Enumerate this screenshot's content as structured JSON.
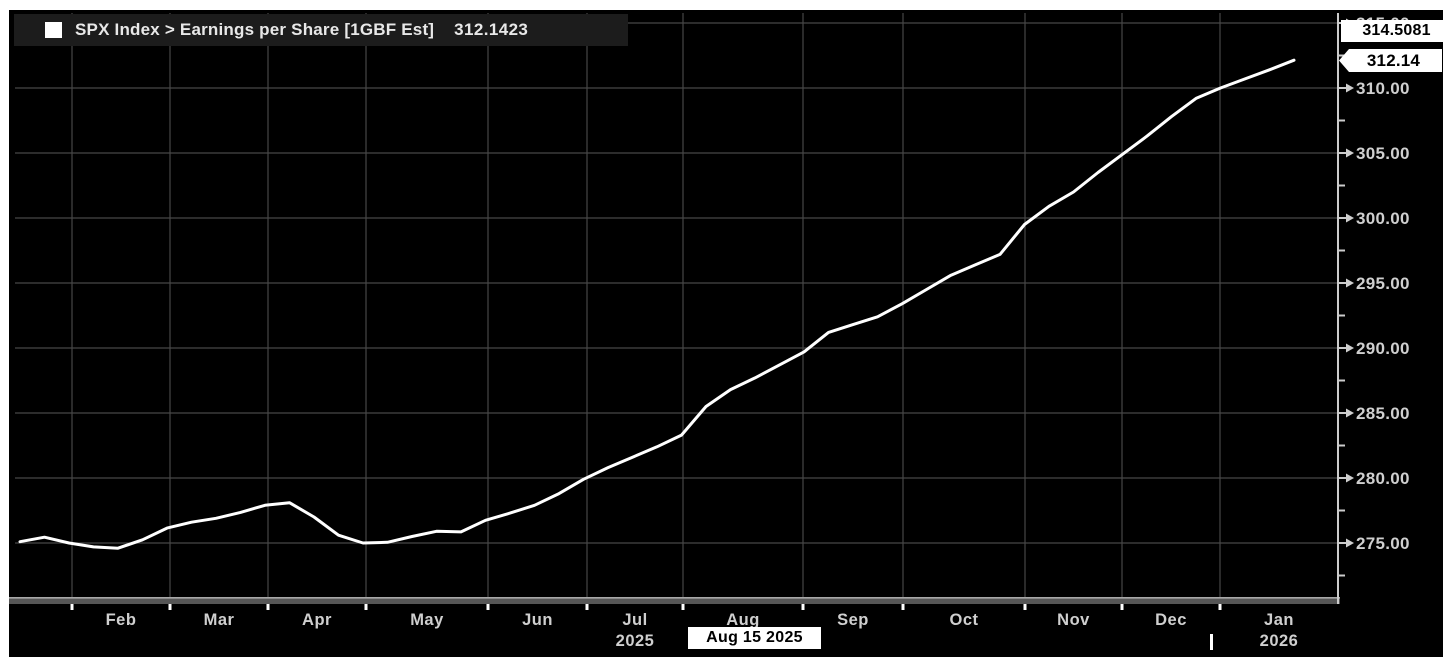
{
  "legend": {
    "marker_color": "#ffffff",
    "label": "SPX Index > Earnings per Share [1GBF Est]",
    "value": "312.1423"
  },
  "annotations": {
    "high_label": "314.5081",
    "last_price_label": "312.14",
    "date_label": "Aug 15 2025"
  },
  "chart_data": {
    "type": "line",
    "title": "SPX Index > Earnings per Share [1GBF Est]",
    "series": [
      {
        "name": "SPX Index Earnings per Share [1GBF Est]",
        "frequency": "weekly",
        "last_value": 312.1423,
        "values": [
          275.1,
          275.45,
          275.0,
          274.7,
          274.6,
          275.25,
          276.15,
          276.6,
          276.9,
          277.35,
          277.9,
          278.1,
          277.0,
          275.6,
          275.0,
          275.05,
          275.5,
          275.9,
          275.85,
          276.75,
          277.3,
          277.9,
          278.8,
          279.9,
          280.8,
          281.6,
          282.4,
          283.3,
          285.5,
          286.8,
          287.7,
          288.7,
          289.7,
          291.2,
          291.8,
          292.4,
          293.4,
          294.5,
          295.6,
          296.4,
          297.2,
          299.5,
          300.9,
          302.0,
          303.5,
          304.9,
          306.3,
          307.8,
          309.2,
          310.0,
          310.7,
          311.4,
          312.1423
        ]
      }
    ],
    "line_color": "#ffffff",
    "grid": true,
    "background": "#000000",
    "gridline_color": "#474747",
    "axis_text_color": "#cfcfcf",
    "ylim": [
      270.8,
      315.8
    ],
    "y_axis_side": "right",
    "y_ticks_major": [
      275,
      280,
      285,
      290,
      295,
      300,
      305,
      310,
      315
    ],
    "y_tick_labels": [
      "275.00",
      "280.00",
      "285.00",
      "290.00",
      "295.00",
      "300.00",
      "305.00",
      "310.00",
      "315.00"
    ],
    "y_ticks_minor": [
      272.5,
      277.5,
      282.5,
      287.5,
      292.5,
      297.5,
      302.5,
      307.5,
      312.5
    ],
    "x_ticks": [
      {
        "label": "Feb",
        "x": 72
      },
      {
        "label": "Mar",
        "x": 170
      },
      {
        "label": "Apr",
        "x": 268
      },
      {
        "label": "May",
        "x": 366
      },
      {
        "label": "Jun",
        "x": 488
      },
      {
        "label": "Jul",
        "x": 587,
        "year": "2025"
      },
      {
        "label": "Aug",
        "x": 683
      },
      {
        "label": "Sep",
        "x": 803
      },
      {
        "label": "Oct",
        "x": 903
      },
      {
        "label": "Nov",
        "x": 1025
      },
      {
        "label": "Dec",
        "x": 1122
      },
      {
        "label": "Jan",
        "x": 1220,
        "year": "2026"
      }
    ]
  }
}
